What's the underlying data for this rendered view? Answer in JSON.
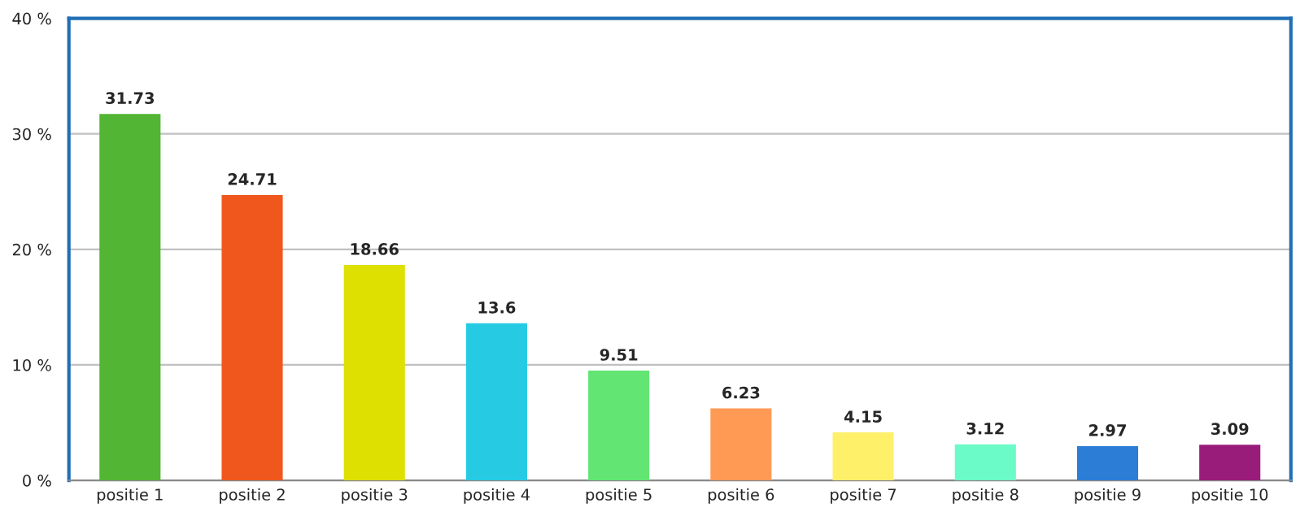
{
  "chart_data": {
    "type": "bar",
    "categories": [
      "positie 1",
      "positie 2",
      "positie 3",
      "positie 4",
      "positie 5",
      "positie 6",
      "positie 7",
      "positie 8",
      "positie 9",
      "positie 10"
    ],
    "values": [
      31.73,
      24.71,
      18.66,
      13.6,
      9.51,
      6.23,
      4.15,
      3.12,
      2.97,
      3.09
    ],
    "colors": [
      "#52b533",
      "#ef571c",
      "#dde000",
      "#26cbe3",
      "#62e572",
      "#ff9a55",
      "#fff06a",
      "#6bfbc8",
      "#2c7dd6",
      "#991c7a"
    ],
    "ylim": [
      0,
      40
    ],
    "yticks": [
      {
        "value": 0,
        "label": "0 %"
      },
      {
        "value": 10,
        "label": "10 %"
      },
      {
        "value": 20,
        "label": "20 %"
      },
      {
        "value": 30,
        "label": "30 %"
      },
      {
        "value": 40,
        "label": "40 %"
      }
    ],
    "grid": "y",
    "data_labels": true,
    "legend": false
  }
}
